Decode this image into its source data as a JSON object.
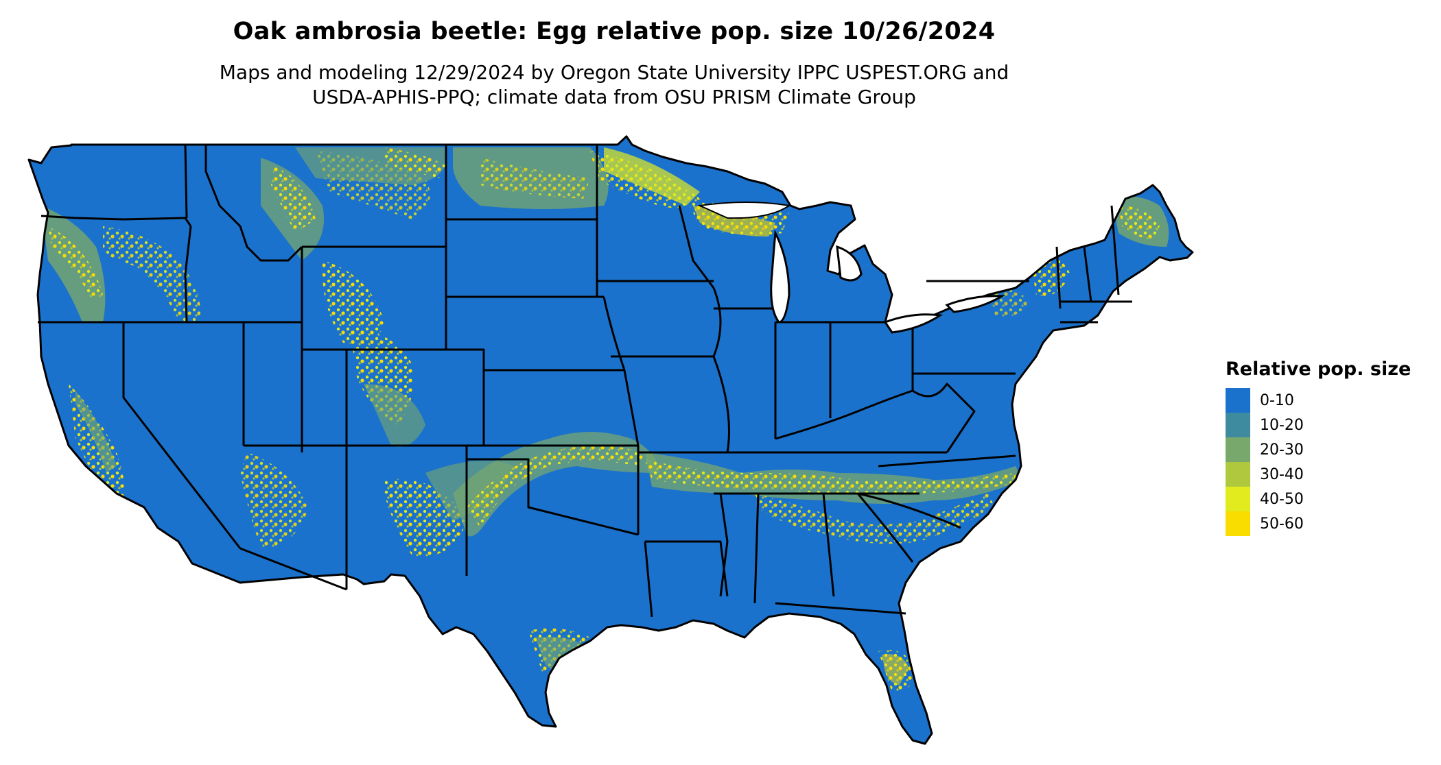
{
  "title": "Oak ambrosia beetle: Egg relative pop. size 10/26/2024",
  "subtitle_line1": "Maps and modeling 12/29/2024 by Oregon State University IPPC USPEST.ORG and",
  "subtitle_line2": "USDA-APHIS-PPQ; climate data from OSU PRISM Climate Group",
  "legend": {
    "title": "Relative pop. size",
    "items": [
      {
        "label": "0-10",
        "color": "#1B72CC"
      },
      {
        "label": "10-20",
        "color": "#3E8A9E"
      },
      {
        "label": "20-30",
        "color": "#79A86C"
      },
      {
        "label": "30-40",
        "color": "#AFC83E"
      },
      {
        "label": "40-50",
        "color": "#E2EB1E"
      },
      {
        "label": "50-60",
        "color": "#F9DD00"
      }
    ]
  },
  "map": {
    "region": "contiguous-united-states",
    "base_color": "#1B72CC",
    "border_color": "#000000"
  }
}
